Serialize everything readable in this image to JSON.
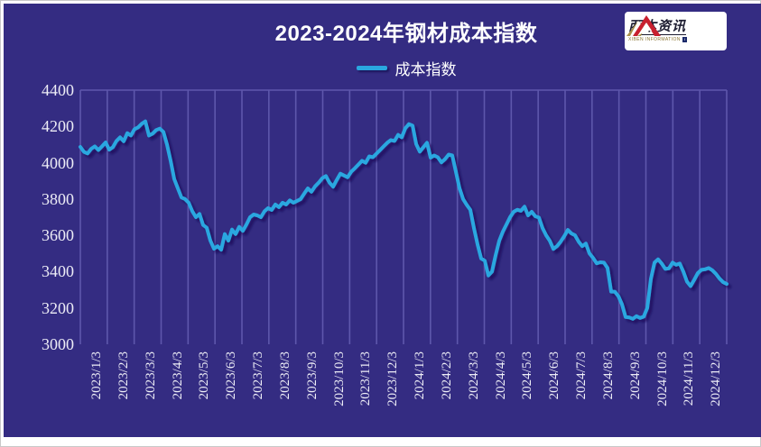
{
  "title": "2023-2024年钢材成本指数",
  "legend": {
    "label": "成本指数"
  },
  "logo": {
    "name": "西本资讯",
    "subtext": "XIBEN INFORMATION",
    "mountain_icon": "twin-peaks"
  },
  "colors": {
    "panel_background": "#342C82",
    "gridline": "#5E57AC",
    "series_line": "#2AA7E0",
    "axis_line": "#E6E6F0",
    "text": "#FFFFFF",
    "shadow": "#0A0550"
  },
  "chart_data": {
    "type": "line",
    "title": "2023-2024年钢材成本指数",
    "grid": "vertical-only",
    "legend_position": "top-center",
    "ylim": [
      3000,
      4400
    ],
    "y_ticks": [
      4400,
      4200,
      4000,
      3800,
      3600,
      3400,
      3200,
      3000
    ],
    "x_tick_labels": [
      "2023/1/3",
      "2023/2/3",
      "2023/3/3",
      "2023/4/3",
      "2023/5/3",
      "2023/6/3",
      "2023/7/3",
      "2023/8/3",
      "2023/9/3",
      "2023/10/3",
      "2023/11/3",
      "2023/12/3",
      "2024/1/3",
      "2024/2/3",
      "2024/3/3",
      "2024/4/3",
      "2024/5/3",
      "2024/6/3",
      "2024/7/3",
      "2024/8/3",
      "2024/9/3",
      "2024/10/3",
      "2024/11/3",
      "2024/12/3"
    ],
    "x_label_rotation": 90,
    "series": [
      {
        "name": "成本指数",
        "color": "#2AA7E0",
        "note": "values sampled at ~4-day intervals from 2023/1/3 to 2024/12/31",
        "values": [
          4087,
          4060,
          4051,
          4077,
          4090,
          4070,
          4090,
          4112,
          4072,
          4085,
          4120,
          4140,
          4118,
          4163,
          4150,
          4185,
          4195,
          4215,
          4228,
          4150,
          4160,
          4180,
          4188,
          4170,
          4100,
          4011,
          3910,
          3859,
          3808,
          3800,
          3780,
          3733,
          3700,
          3718,
          3657,
          3642,
          3571,
          3526,
          3540,
          3521,
          3607,
          3571,
          3632,
          3607,
          3647,
          3625,
          3660,
          3700,
          3715,
          3710,
          3700,
          3733,
          3750,
          3740,
          3770,
          3755,
          3780,
          3770,
          3793,
          3780,
          3790,
          3800,
          3830,
          3859,
          3840,
          3870,
          3890,
          3915,
          3927,
          3890,
          3868,
          3905,
          3940,
          3930,
          3920,
          3950,
          3969,
          3990,
          4011,
          4000,
          4035,
          4030,
          4050,
          4070,
          4090,
          4110,
          4125,
          4120,
          4154,
          4140,
          4190,
          4213,
          4205,
          4103,
          4061,
          4085,
          4110,
          4028,
          4040,
          4030,
          4002,
          4020,
          4045,
          4040,
          3950,
          3860,
          3800,
          3768,
          3740,
          3640,
          3550,
          3472,
          3460,
          3379,
          3400,
          3490,
          3570,
          3620,
          3660,
          3700,
          3730,
          3741,
          3735,
          3758,
          3710,
          3730,
          3705,
          3698,
          3640,
          3600,
          3570,
          3525,
          3540,
          3565,
          3595,
          3630,
          3610,
          3600,
          3565,
          3540,
          3555,
          3500,
          3475,
          3446,
          3452,
          3450,
          3420,
          3290,
          3290,
          3265,
          3220,
          3150,
          3148,
          3140,
          3155,
          3145,
          3152,
          3200,
          3360,
          3450,
          3468,
          3445,
          3415,
          3418,
          3450,
          3438,
          3445,
          3400,
          3345,
          3320,
          3355,
          3392,
          3410,
          3413,
          3420,
          3408,
          3388,
          3362,
          3342,
          3332
        ]
      }
    ]
  }
}
